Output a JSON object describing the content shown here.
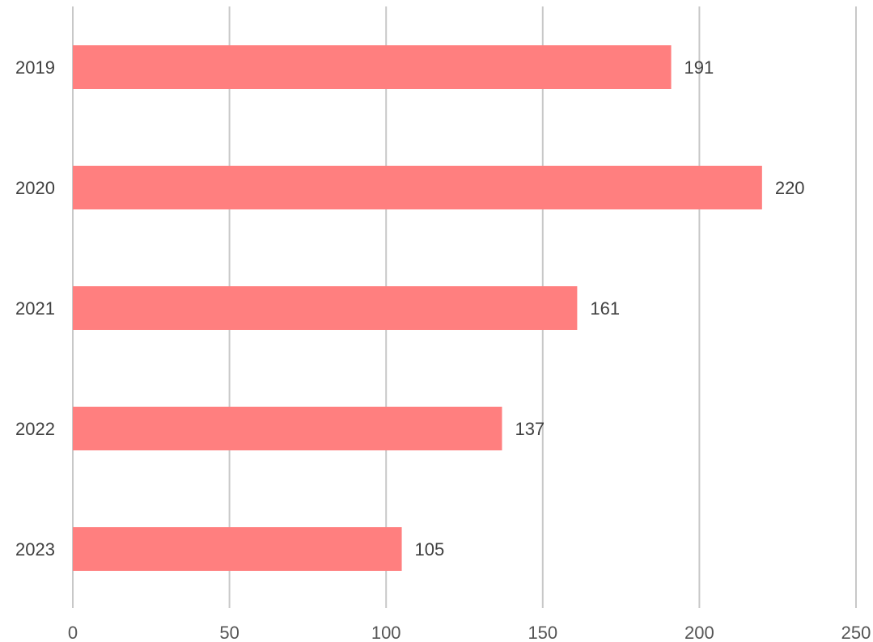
{
  "colors": {
    "bar": "#ff7f7f",
    "grid": "#c8c8c8",
    "text": "#404040"
  },
  "chart_data": {
    "type": "bar",
    "orientation": "horizontal",
    "title": "",
    "xlabel": "",
    "ylabel": "",
    "categories": [
      "2019",
      "2020",
      "2021",
      "2022",
      "2023"
    ],
    "values": [
      191,
      220,
      161,
      137,
      105
    ],
    "data_labels": [
      "191",
      "220",
      "161",
      "137",
      "105"
    ],
    "xlim": [
      0,
      250
    ],
    "x_ticks": [
      0,
      50,
      100,
      150,
      200,
      250
    ],
    "grid": true,
    "legend": "none"
  }
}
